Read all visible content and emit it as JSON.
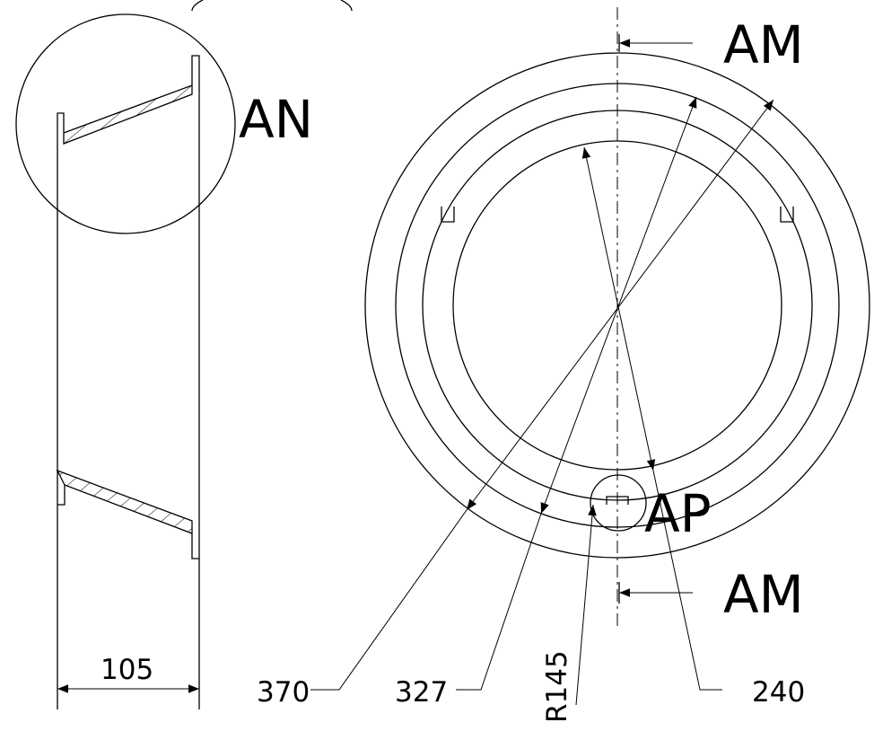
{
  "drawing": {
    "section_labels": {
      "top": "AM",
      "bottom": "AM"
    },
    "detail_labels": {
      "left_circle": "AN",
      "bottom_circle": "AP"
    },
    "side_view": {
      "width_dimension": "105"
    },
    "plan_view": {
      "diameter_outer": "370",
      "diameter_middle": "327",
      "radius_leader": "R145",
      "diameter_inner": "240"
    }
  },
  "colors": {
    "line": "#000000",
    "background": "#ffffff"
  }
}
